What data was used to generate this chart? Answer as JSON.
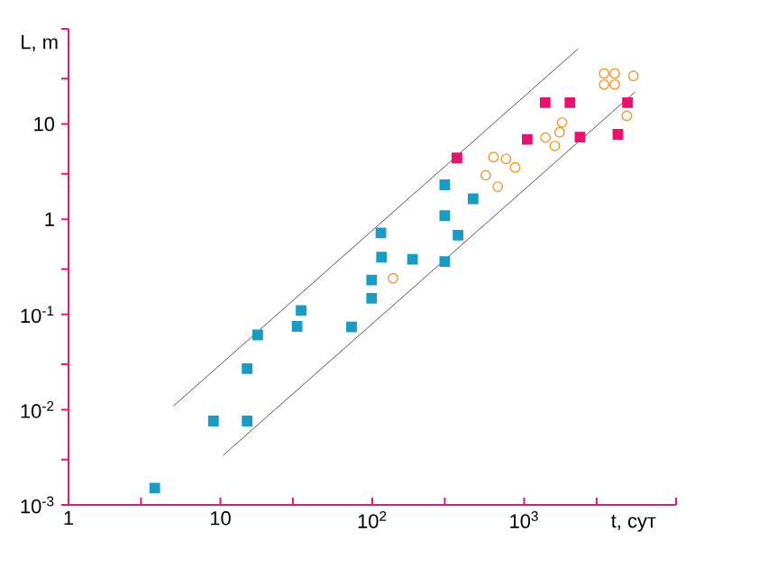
{
  "chart_data": {
    "type": "scatter",
    "xlabel": "t, сут",
    "ylabel": "L, m",
    "log": "xy",
    "xlim": [
      1,
      10000
    ],
    "ylim": [
      0.001,
      100
    ],
    "xticks": [
      1,
      10,
      {
        "value": 100,
        "label": "10$^{2}$"
      },
      {
        "value": 1000,
        "label": "10$^{3}$"
      },
      {
        "value": 3,
        "label": null
      },
      {
        "value": 30,
        "label": null
      },
      {
        "value": 300,
        "label": null
      },
      {
        "value": 3000,
        "label": null
      },
      {
        "value": 10000,
        "label": null
      }
    ],
    "yticks": [
      {
        "value": 0.001,
        "label": "10$^{-3}$"
      },
      {
        "value": 0.01,
        "label": "10$^{-2}$"
      },
      {
        "value": 0.1,
        "label": "10$^{-1}$"
      },
      1,
      10,
      {
        "value": 0.003,
        "label": null
      },
      {
        "value": 0.03,
        "label": null
      },
      {
        "value": 0.3,
        "label": null
      },
      {
        "value": 3,
        "label": null
      },
      {
        "value": 30,
        "label": null
      },
      {
        "value": 100,
        "label": null
      }
    ],
    "series": [
      {
        "marker": "square",
        "color": "#1a9bc4",
        "x": [
          3.7,
          9,
          15,
          15,
          17.6,
          32,
          34,
          73,
          99,
          99,
          115,
          114,
          184,
          300,
          300,
          300,
          367,
          461
        ],
        "values": [
          0.0015,
          0.0076,
          0.0076,
          0.027,
          0.061,
          0.075,
          0.11,
          0.074,
          0.148,
          0.23,
          0.4,
          0.72,
          0.38,
          0.36,
          1.09,
          2.3,
          0.68,
          1.64
        ]
      },
      {
        "marker": "square",
        "color": "#e6136f",
        "x": [
          361,
          1047,
          1375,
          2000,
          2330,
          4140,
          4790
        ],
        "values": [
          4.4,
          6.9,
          16.8,
          16.8,
          7.3,
          7.8,
          16.8
        ]
      },
      {
        "marker": "circle",
        "color": "#f0962a",
        "x": [
          137,
          558,
          628,
          670,
          760,
          872,
          1380,
          1590,
          1710,
          1775,
          3360,
          3950,
          3360,
          3950,
          5240,
          4740
        ],
        "values": [
          0.24,
          2.9,
          4.5,
          2.2,
          4.3,
          3.5,
          7.2,
          5.9,
          8.2,
          10.4,
          34,
          34,
          26,
          26,
          32,
          12.2
        ]
      },
      {
        "type": "line",
        "marker": "none",
        "line_style": "solid",
        "color": "#555555",
        "x": [
          4.9,
          2270
        ],
        "values": [
          0.0109,
          62
        ]
      },
      {
        "type": "line",
        "marker": "none",
        "line_style": "solid",
        "color": "#555555",
        "x": [
          10.4,
          5390
        ],
        "values": [
          0.0033,
          21.9
        ]
      }
    ]
  }
}
